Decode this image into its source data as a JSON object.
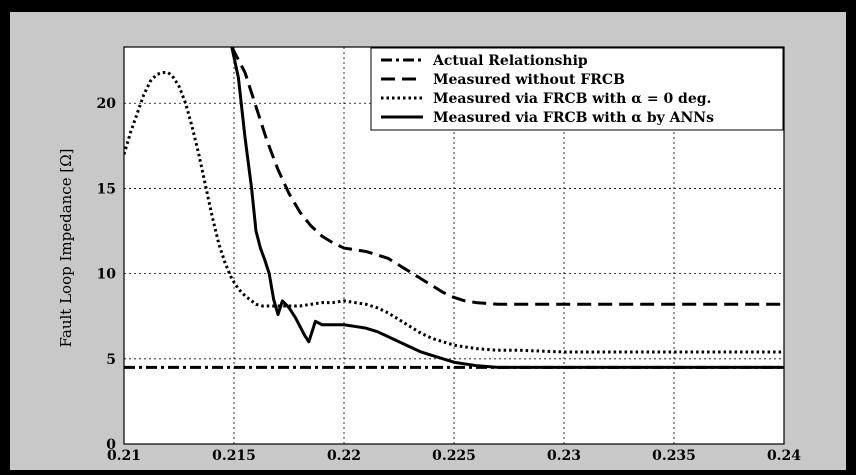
{
  "chart_data": {
    "type": "line",
    "title": "",
    "xlabel": "",
    "ylabel": "Fault Loop Impedance [Ω]",
    "xlim": [
      0.21,
      0.24
    ],
    "ylim": [
      0,
      23.3
    ],
    "grid": true,
    "legend_position": "top-right",
    "x_ticks": [
      0.21,
      0.215,
      0.22,
      0.225,
      0.23,
      0.235,
      0.24
    ],
    "x_tick_labels": [
      "0.21",
      "0.215",
      "0.22",
      "0.225",
      "0.23",
      "0.235",
      "0.24"
    ],
    "y_ticks": [
      0,
      5,
      10,
      15,
      20
    ],
    "y_tick_labels": [
      "0",
      "5",
      "10",
      "15",
      "20"
    ],
    "colors": {
      "frame": "#000000",
      "figure_bg": "#c8c8c8",
      "axes_bg": "#ffffff",
      "lines": "#000000"
    },
    "series": [
      {
        "name": "Actual Relationship",
        "dash": "dashdot",
        "x": [
          0.21,
          0.24
        ],
        "y": [
          4.5,
          4.5
        ]
      },
      {
        "name": "Measured without FRCB",
        "dash": "dashed",
        "x": [
          0.2149,
          0.2155,
          0.216,
          0.2165,
          0.217,
          0.2175,
          0.218,
          0.2185,
          0.219,
          0.2195,
          0.22,
          0.2205,
          0.221,
          0.2215,
          0.222,
          0.2225,
          0.223,
          0.2235,
          0.224,
          0.2245,
          0.225,
          0.2255,
          0.226,
          0.227,
          0.228,
          0.229,
          0.23,
          0.232,
          0.234,
          0.236,
          0.238,
          0.24
        ],
        "y": [
          23.3,
          21.8,
          19.8,
          17.8,
          16.1,
          14.7,
          13.6,
          12.8,
          12.2,
          11.8,
          11.5,
          11.4,
          11.3,
          11.1,
          10.9,
          10.5,
          10.1,
          9.7,
          9.3,
          8.9,
          8.6,
          8.4,
          8.3,
          8.2,
          8.2,
          8.2,
          8.2,
          8.2,
          8.2,
          8.2,
          8.2,
          8.2
        ]
      },
      {
        "name": "Measured via FRCB with α = 0 deg.",
        "dash": "dotted",
        "x": [
          0.21,
          0.2103,
          0.2106,
          0.2109,
          0.2112,
          0.2115,
          0.2118,
          0.212,
          0.2122,
          0.2125,
          0.2128,
          0.2131,
          0.2134,
          0.2137,
          0.214,
          0.2143,
          0.2146,
          0.2149,
          0.2152,
          0.2155,
          0.2158,
          0.216,
          0.2163,
          0.2166,
          0.217,
          0.2175,
          0.218,
          0.2185,
          0.219,
          0.2195,
          0.22,
          0.2205,
          0.221,
          0.2215,
          0.222,
          0.2225,
          0.223,
          0.2235,
          0.224,
          0.2245,
          0.225,
          0.226,
          0.227,
          0.228,
          0.23,
          0.232,
          0.234,
          0.236,
          0.238,
          0.24
        ],
        "y": [
          17.0,
          18.3,
          19.4,
          20.5,
          21.3,
          21.7,
          21.8,
          21.8,
          21.6,
          21.0,
          20.0,
          18.6,
          17.0,
          15.2,
          13.4,
          11.8,
          10.6,
          9.7,
          9.1,
          8.7,
          8.4,
          8.2,
          8.1,
          8.1,
          8.1,
          8.1,
          8.1,
          8.2,
          8.3,
          8.3,
          8.4,
          8.3,
          8.2,
          8.0,
          7.7,
          7.3,
          6.9,
          6.5,
          6.2,
          6.0,
          5.8,
          5.6,
          5.5,
          5.5,
          5.4,
          5.4,
          5.4,
          5.4,
          5.4,
          5.4
        ]
      },
      {
        "name": "Measured via FRCB with α by ANNs",
        "dash": "solid",
        "x": [
          0.2149,
          0.2152,
          0.2155,
          0.2158,
          0.216,
          0.2162,
          0.2164,
          0.2166,
          0.2168,
          0.217,
          0.2172,
          0.2175,
          0.2178,
          0.218,
          0.2182,
          0.2184,
          0.2187,
          0.219,
          0.2195,
          0.22,
          0.2205,
          0.221,
          0.2215,
          0.222,
          0.2225,
          0.223,
          0.2235,
          0.224,
          0.2245,
          0.225,
          0.2255,
          0.226,
          0.227,
          0.228,
          0.229,
          0.23,
          0.232,
          0.234,
          0.236,
          0.238,
          0.24
        ],
        "y": [
          23.3,
          21.5,
          18.0,
          15.0,
          12.5,
          11.5,
          10.8,
          10.0,
          8.5,
          7.6,
          8.4,
          8.0,
          7.4,
          6.9,
          6.4,
          6.0,
          7.2,
          7.0,
          7.0,
          7.0,
          6.9,
          6.8,
          6.6,
          6.3,
          6.0,
          5.7,
          5.4,
          5.2,
          5.0,
          4.8,
          4.7,
          4.6,
          4.5,
          4.5,
          4.5,
          4.5,
          4.5,
          4.5,
          4.5,
          4.5,
          4.5
        ]
      }
    ]
  }
}
